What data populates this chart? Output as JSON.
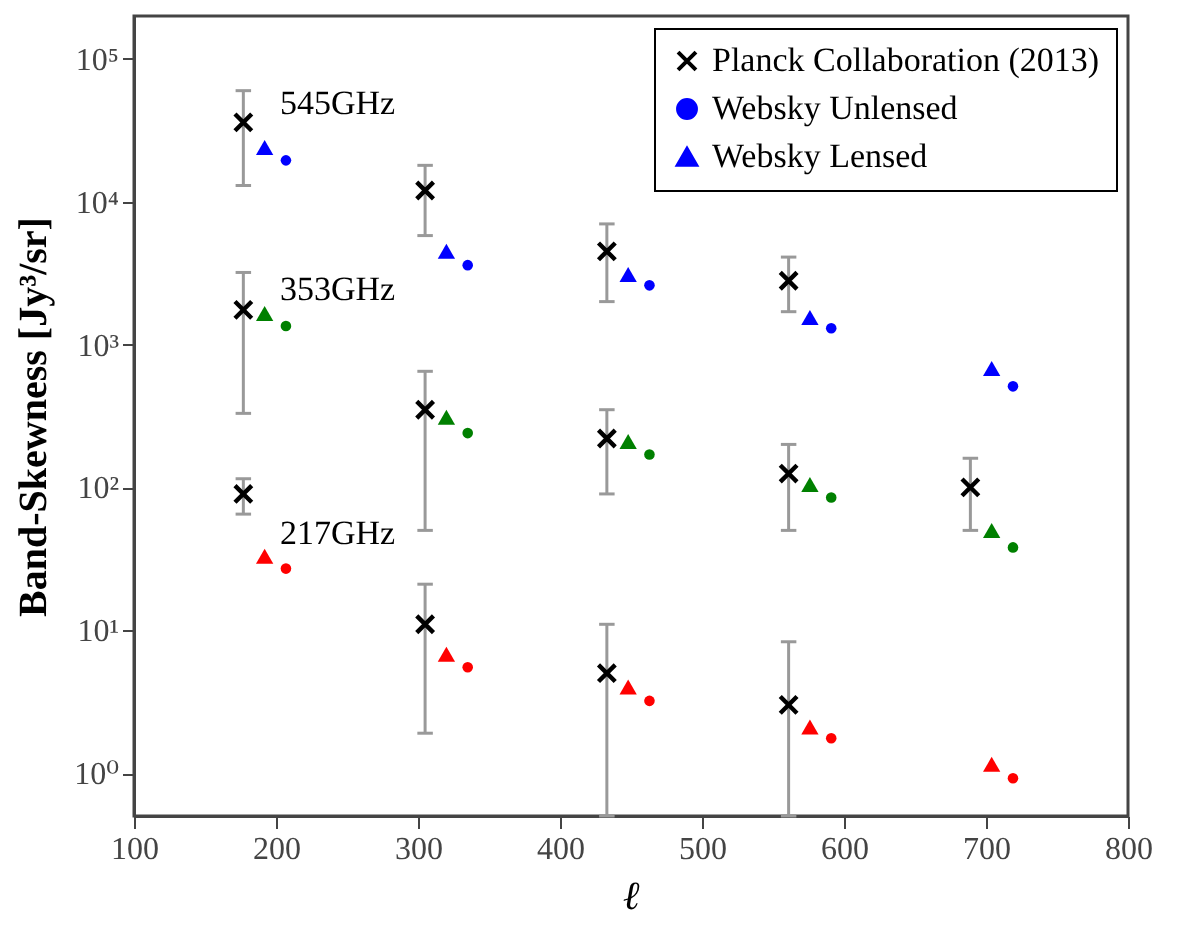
{
  "chart_data": {
    "type": "scatter",
    "xlabel": "ℓ",
    "ylabel": "Band-Skewness [Jy³/sr]",
    "log": "y",
    "xlim": [
      100,
      800
    ],
    "xticks": [
      100,
      200,
      300,
      400,
      500,
      600,
      700,
      800
    ],
    "ylim": [
      0.5,
      200000
    ],
    "yticks": [
      {
        "value": 1,
        "label": "10⁰"
      },
      {
        "value": 10,
        "label": "10¹"
      },
      {
        "value": 100,
        "label": "10²"
      },
      {
        "value": 1000,
        "label": "10³"
      },
      {
        "value": 10000,
        "label": "10⁴"
      },
      {
        "value": 100000,
        "label": "10⁵"
      }
    ],
    "grid": false,
    "legend": "top right",
    "annotations": [
      "545GHz",
      "353GHz",
      "217GHz"
    ],
    "series": [
      {
        "name": "Planck Collaboration (2013)",
        "color": "#000000",
        "marker": "cross",
        "x": [
          177,
          305,
          433,
          561,
          177,
          305,
          433,
          561,
          689,
          177,
          305,
          433,
          561
        ],
        "values": [
          36000,
          12000,
          4500,
          2800,
          1750,
          350,
          220,
          125,
          100,
          90,
          11,
          5,
          3
        ],
        "errors": [
          [
            13000,
            60000
          ],
          [
            5800,
            18000
          ],
          [
            2000,
            7000
          ],
          [
            1700,
            4100
          ],
          [
            330,
            3200
          ],
          [
            50,
            650
          ],
          [
            90,
            350
          ],
          [
            50,
            200
          ],
          [
            50,
            160
          ],
          [
            65,
            115
          ],
          [
            1.9,
            21
          ],
          [
            0.5,
            11
          ],
          [
            0.5,
            8.3
          ]
        ]
      },
      {
        "name": "Websky Unlensed",
        "color": "#0000ff",
        "marker": "circle",
        "x": [
          207,
          335,
          463,
          591,
          719,
          207,
          335,
          463,
          591,
          719,
          207,
          335,
          463,
          591,
          719
        ],
        "values": [
          19500,
          3600,
          2600,
          1300,
          510,
          1350,
          240,
          170,
          85,
          38,
          27,
          5.5,
          3.2,
          1.75,
          0.92
        ],
        "colors": [
          "#0000ff",
          "#0000ff",
          "#0000ff",
          "#0000ff",
          "#0000ff",
          "#008000",
          "#008000",
          "#008000",
          "#008000",
          "#008000",
          "#ff0000",
          "#ff0000",
          "#ff0000",
          "#ff0000",
          "#ff0000"
        ]
      },
      {
        "name": "Websky Lensed",
        "color": "#0000ff",
        "marker": "triangle",
        "x": [
          192,
          320,
          448,
          576,
          704,
          192,
          320,
          448,
          576,
          704,
          192,
          320,
          448,
          576,
          704
        ],
        "values": [
          24000,
          4500,
          3100,
          1550,
          680,
          1650,
          310,
          210,
          105,
          50,
          33,
          6.8,
          4.0,
          2.1,
          1.15
        ],
        "colors": [
          "#0000ff",
          "#0000ff",
          "#0000ff",
          "#0000ff",
          "#0000ff",
          "#008000",
          "#008000",
          "#008000",
          "#008000",
          "#008000",
          "#ff0000",
          "#ff0000",
          "#ff0000",
          "#ff0000",
          "#ff0000"
        ]
      }
    ]
  }
}
